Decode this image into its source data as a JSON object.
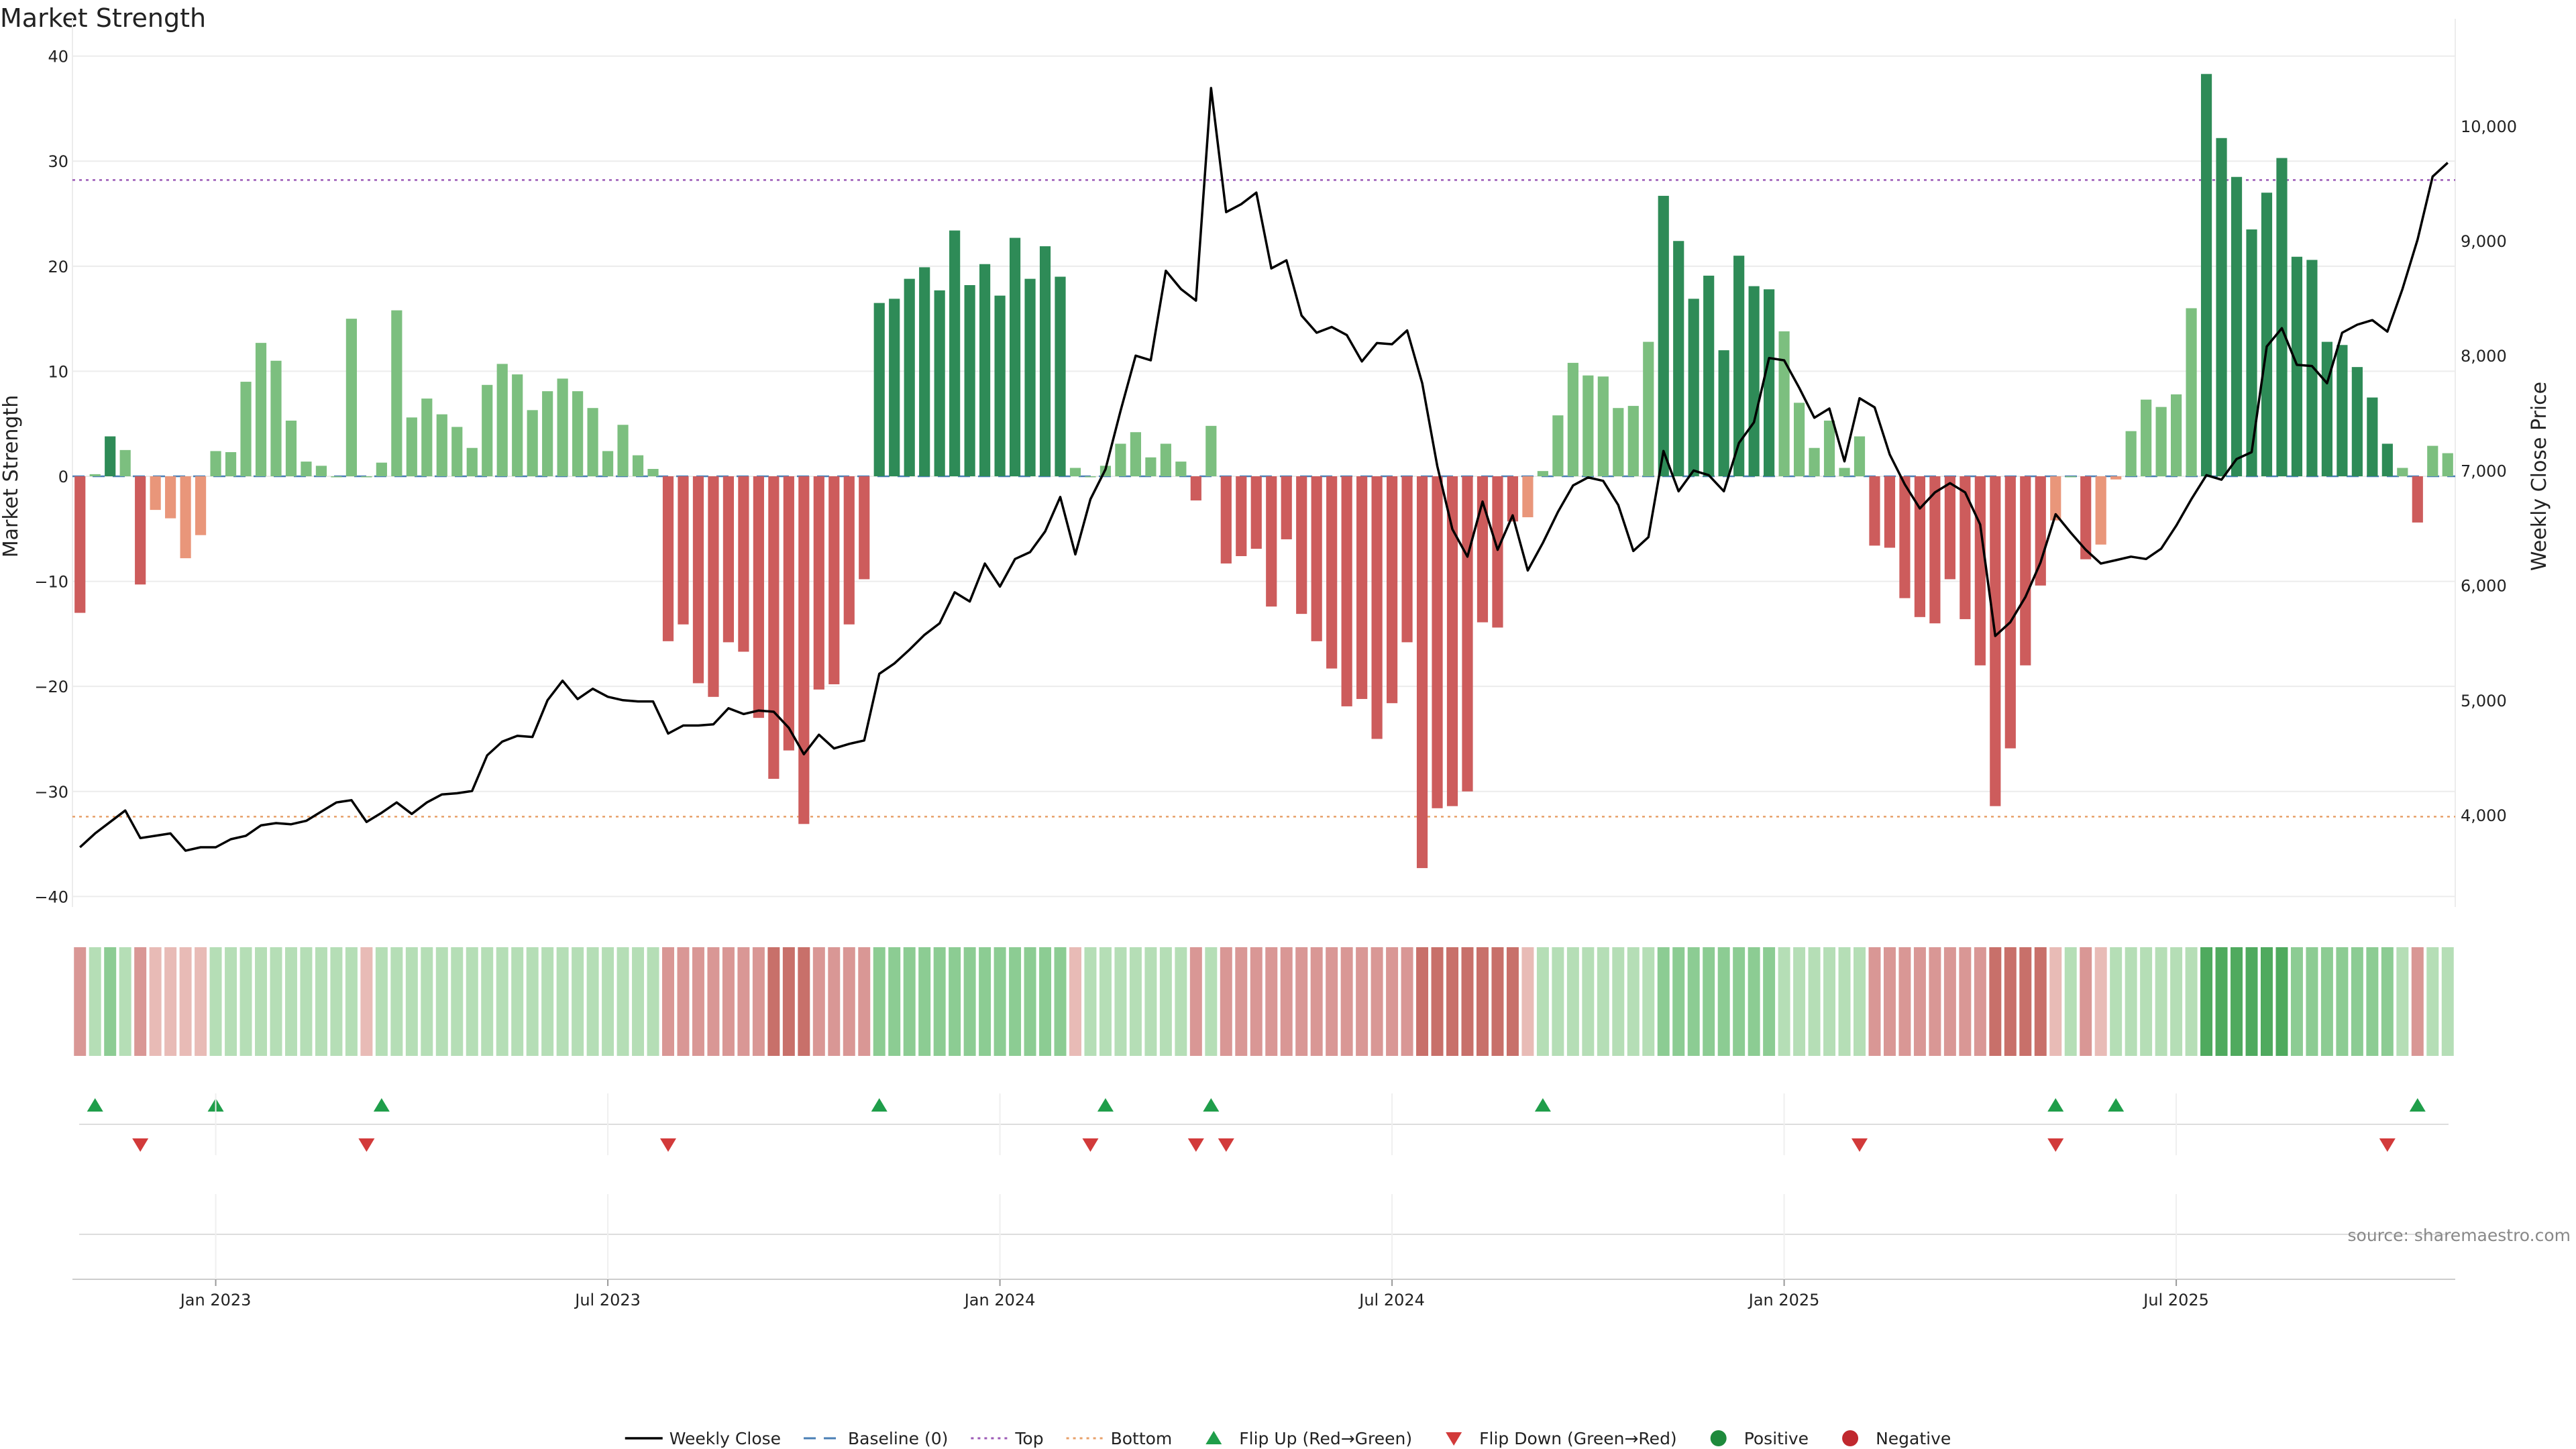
{
  "chart_data": {
    "type": "bar",
    "title": "Market Strength",
    "ylabel": "Market Strength",
    "y2label": "Weekly Close Price",
    "ylim": [
      -41,
      41
    ],
    "y2lim": [
      3200,
      10700
    ],
    "yticks": [
      40,
      30,
      20,
      10,
      0,
      -10,
      -20,
      -30,
      -40
    ],
    "y2ticks": [
      4000,
      5000,
      6000,
      7000,
      8000,
      9000,
      10000
    ],
    "xticks": [
      {
        "label": "Jan 2023",
        "week": 9
      },
      {
        "label": "Jul 2023",
        "week": 35
      },
      {
        "label": "Jan 2024",
        "week": 61
      },
      {
        "label": "Jul 2024",
        "week": 87
      },
      {
        "label": "Jan 2025",
        "week": 113
      },
      {
        "label": "Jul 2025",
        "week": 139
      }
    ],
    "reference_lines": [
      {
        "name": "Baseline (0)",
        "value": 0,
        "color": "#4a7fb5",
        "style": "dashed"
      },
      {
        "name": "Top",
        "value": 28.2,
        "color": "#9b59b6",
        "style": "dotted"
      },
      {
        "name": "Bottom",
        "value": -32.4,
        "color": "#e8a06a",
        "style": "dotted"
      }
    ],
    "series": [
      {
        "name": "Market Strength",
        "values": [
          -13,
          0.2,
          3.8,
          2.5,
          -10.3,
          -3.2,
          -4,
          -7.8,
          -5.6,
          2.4,
          2.3,
          9,
          12.7,
          11,
          5.3,
          1.4,
          1,
          0,
          15,
          0,
          1.3,
          15.8,
          5.6,
          7.4,
          5.9,
          4.7,
          2.7,
          8.7,
          10.7,
          9.7,
          6.3,
          8.1,
          9.3,
          8.1,
          6.5,
          2.4,
          4.9,
          2,
          0.7,
          -15.7,
          -14.1,
          -19.7,
          -21,
          -15.8,
          -16.7,
          -23,
          -28.8,
          -26.1,
          -33.1,
          -20.3,
          -19.8,
          -14.1,
          -9.8,
          16.5,
          16.9,
          18.8,
          19.9,
          17.7,
          23.4,
          18.2,
          20.2,
          17.2,
          22.7,
          18.8,
          21.9,
          19,
          0.8,
          0,
          1,
          3.1,
          4.2,
          1.8,
          3.1,
          1.4,
          -2.3,
          4.8,
          -8.3,
          -7.6,
          -6.9,
          -12.4,
          -6,
          -13.1,
          -15.7,
          -18.3,
          -21.9,
          -21.2,
          -25,
          -21.6,
          -15.8,
          -37.3,
          -31.6,
          -31.4,
          -30,
          -13.9,
          -14.4,
          -4.3,
          -3.9,
          0.5,
          5.8,
          10.8,
          9.6,
          9.5,
          6.5,
          6.7,
          12.8,
          26.7,
          22.4,
          16.9,
          19.1,
          12,
          21,
          18.1,
          17.8,
          13.8,
          7,
          2.7,
          5.3,
          0.8,
          3.8,
          -6.6,
          -6.8,
          -11.6,
          -13.4,
          -14,
          -9.8,
          -13.6,
          -18,
          -31.4,
          -25.9,
          -18,
          -10.4,
          -4.2,
          0,
          -7.9,
          -6.5,
          -0.3,
          4.3,
          7.3,
          6.6,
          7.8,
          16,
          38.3,
          32.2,
          28.5,
          23.5,
          27,
          30.3,
          20.9,
          20.6,
          12.8,
          12.5,
          10.4,
          7.5,
          3.1,
          0.8,
          -4.4,
          2.9,
          2.2
        ]
      },
      {
        "name": "Weekly Close",
        "values": [
          3720,
          3840,
          3940,
          4040,
          3800,
          3820,
          3840,
          3690,
          3720,
          3720,
          3790,
          3820,
          3910,
          3930,
          3920,
          3950,
          4030,
          4110,
          4130,
          3940,
          4020,
          4110,
          4010,
          4110,
          4180,
          4190,
          4210,
          4520,
          4640,
          4690,
          4680,
          5000,
          5170,
          5010,
          5100,
          5030,
          5000,
          4990,
          4990,
          4710,
          4780,
          4780,
          4790,
          4930,
          4880,
          4910,
          4900,
          4760,
          4530,
          4700,
          4580,
          4620,
          4650,
          5230,
          5320,
          5440,
          5570,
          5670,
          5940,
          5860,
          6190,
          5990,
          6230,
          6290,
          6470,
          6770,
          6270,
          6750,
          7010,
          7520,
          8000,
          7960,
          8740,
          8580,
          8480,
          10330,
          9250,
          9320,
          9420,
          8760,
          8830,
          8350,
          8200,
          8250,
          8180,
          7950,
          8110,
          8100,
          8220,
          7760,
          7040,
          6490,
          6250,
          6730,
          6310,
          6610,
          6130,
          6370,
          6640,
          6870,
          6940,
          6910,
          6700,
          6300,
          6420,
          7170,
          6820,
          7000,
          6960,
          6820,
          7240,
          7420,
          7980,
          7960,
          7720,
          7460,
          7540,
          7080,
          7630,
          7550,
          7140,
          6880,
          6670,
          6810,
          6890,
          6810,
          6530,
          5560,
          5680,
          5900,
          6200,
          6620,
          6460,
          6310,
          6190,
          6220,
          6250,
          6230,
          6320,
          6520,
          6750,
          6960,
          6920,
          7100,
          7160,
          8080,
          8240,
          7920,
          7910,
          7760,
          8200,
          8270,
          8310,
          8210,
          8580,
          9010,
          9560,
          9680
        ]
      },
      {
        "name": "Signal",
        "values": [
          -2,
          1,
          2,
          1,
          -2,
          -1,
          -1,
          -1,
          -1,
          1,
          1,
          1,
          1,
          1,
          1,
          1,
          1,
          1,
          1,
          -1,
          1,
          1,
          1,
          1,
          1,
          1,
          1,
          1,
          1,
          1,
          1,
          1,
          1,
          1,
          1,
          1,
          1,
          1,
          1,
          -2,
          -2,
          -2,
          -2,
          -2,
          -2,
          -2,
          -3,
          -3,
          -3,
          -2,
          -2,
          -2,
          -2,
          2,
          2,
          2,
          2,
          2,
          2,
          2,
          2,
          2,
          2,
          2,
          2,
          2,
          -1,
          1,
          1,
          1,
          1,
          1,
          1,
          1,
          -2,
          1,
          -2,
          -2,
          -2,
          -2,
          -2,
          -2,
          -2,
          -2,
          -2,
          -2,
          -2,
          -2,
          -2,
          -3,
          -3,
          -3,
          -3,
          -3,
          -3,
          -3,
          -1,
          1,
          1,
          1,
          1,
          1,
          1,
          1,
          1,
          2,
          2,
          2,
          2,
          2,
          2,
          2,
          2,
          1,
          1,
          1,
          1,
          1,
          1,
          -2,
          -2,
          -2,
          -2,
          -2,
          -2,
          -2,
          -2,
          -3,
          -3,
          -3,
          -3,
          -1,
          1,
          -2,
          -1,
          1,
          1,
          1,
          1,
          1,
          1,
          3,
          3,
          3,
          3,
          3,
          3,
          2,
          2,
          2,
          2,
          2,
          2,
          2,
          1,
          -2,
          1,
          1
        ]
      }
    ],
    "flips_up_weeks": [
      1,
      9,
      20,
      53,
      68,
      75,
      97,
      131,
      135,
      155
    ],
    "flips_down_weeks": [
      4,
      19,
      39,
      67,
      74,
      76,
      118,
      131,
      153
    ],
    "colors": {
      "pos_strong": "#2e8b57",
      "pos_light": "#7cbf7f",
      "neg_strong": "#cd5c5c",
      "neg_light": "#e9967a",
      "line": "#000000",
      "flip_up": "#1f9e4a",
      "flip_down": "#d23a3a",
      "positive_dot": "#1e8a3c",
      "negative_dot": "#c0282e",
      "grid": "#ececec",
      "axis": "#cccccc",
      "source": "#888888"
    },
    "legend": {
      "placement": "bottom-center",
      "items": [
        {
          "label": "Weekly Close",
          "kind": "line",
          "color": "#000000"
        },
        {
          "label": "Baseline (0)",
          "kind": "dashed",
          "color": "#4a7fb5"
        },
        {
          "label": "Top",
          "kind": "dotted",
          "color": "#9b59b6"
        },
        {
          "label": "Bottom",
          "kind": "dotted",
          "color": "#e8a06a"
        },
        {
          "label": "Flip Up (Red→Green)",
          "kind": "tri-up",
          "color": "#1f9e4a"
        },
        {
          "label": "Flip Down (Green→Red)",
          "kind": "tri-down",
          "color": "#d23a3a"
        },
        {
          "label": "Positive",
          "kind": "dot",
          "color": "#1e8a3c"
        },
        {
          "label": "Negative",
          "kind": "dot",
          "color": "#c0282e"
        }
      ]
    },
    "source_text": "source: sharemaestro.com"
  }
}
